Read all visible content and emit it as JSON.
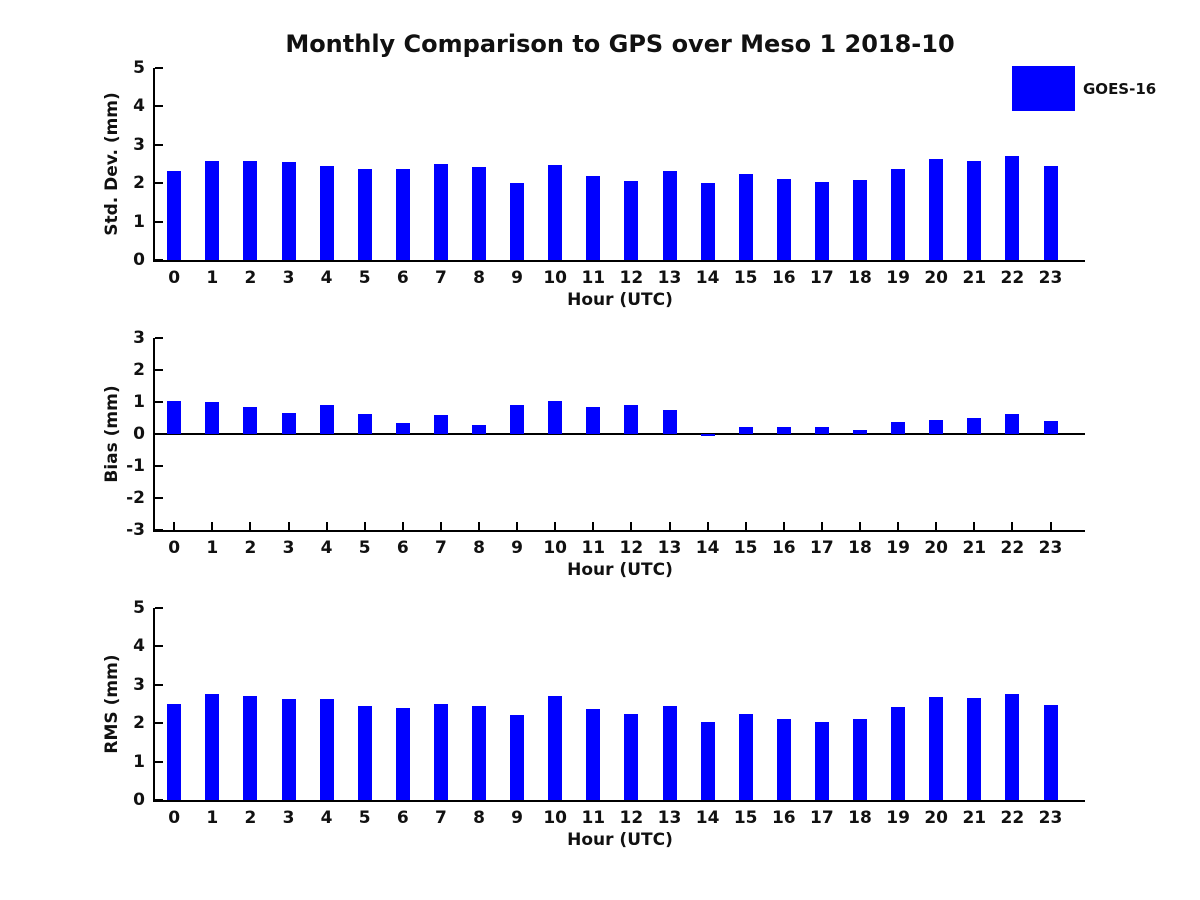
{
  "figure": {
    "title": "Monthly Comparison to GPS over Meso 1 2018-10",
    "background_color": "#ffffff"
  },
  "legend": {
    "label": "GOES-16",
    "swatch_color": "#0000ff",
    "position": "top-right"
  },
  "colors": {
    "bar": "#0000ff",
    "axis": "#000000",
    "text": "#111111"
  },
  "chart_data": [
    {
      "type": "bar",
      "title": "",
      "ylabel": "Std. Dev. (mm)",
      "xlabel": "Hour (UTC)",
      "ylim": [
        0,
        5
      ],
      "yticks": [
        0,
        1,
        2,
        3,
        4,
        5
      ],
      "grid": false,
      "legend_position": "top-right",
      "categories": [
        "0",
        "1",
        "2",
        "3",
        "4",
        "5",
        "6",
        "7",
        "8",
        "9",
        "10",
        "11",
        "12",
        "13",
        "14",
        "15",
        "16",
        "17",
        "18",
        "19",
        "20",
        "21",
        "22",
        "23"
      ],
      "series": [
        {
          "name": "GOES-16",
          "values": [
            2.32,
            2.58,
            2.58,
            2.55,
            2.46,
            2.37,
            2.37,
            2.49,
            2.42,
            2.0,
            2.48,
            2.2,
            2.06,
            2.32,
            2.0,
            2.23,
            2.1,
            2.03,
            2.08,
            2.36,
            2.62,
            2.59,
            2.7,
            2.45
          ]
        }
      ]
    },
    {
      "type": "bar",
      "title": "",
      "ylabel": "Bias (mm)",
      "xlabel": "Hour (UTC)",
      "ylim": [
        -3,
        3
      ],
      "yticks": [
        -3,
        -2,
        -1,
        0,
        1,
        2,
        3
      ],
      "grid": false,
      "legend_position": "none",
      "categories": [
        "0",
        "1",
        "2",
        "3",
        "4",
        "5",
        "6",
        "7",
        "8",
        "9",
        "10",
        "11",
        "12",
        "13",
        "14",
        "15",
        "16",
        "17",
        "18",
        "19",
        "20",
        "21",
        "22",
        "23"
      ],
      "series": [
        {
          "name": "GOES-16",
          "values": [
            1.03,
            1.0,
            0.85,
            0.66,
            0.91,
            0.61,
            0.35,
            0.58,
            0.29,
            0.91,
            1.03,
            0.85,
            0.91,
            0.75,
            -0.05,
            0.23,
            0.22,
            0.22,
            0.14,
            0.38,
            0.44,
            0.5,
            0.63,
            0.41
          ]
        }
      ]
    },
    {
      "type": "bar",
      "title": "",
      "ylabel": "RMS (mm)",
      "xlabel": "Hour (UTC)",
      "ylim": [
        0,
        5
      ],
      "yticks": [
        0,
        1,
        2,
        3,
        4,
        5
      ],
      "grid": false,
      "legend_position": "none",
      "categories": [
        "0",
        "1",
        "2",
        "3",
        "4",
        "5",
        "6",
        "7",
        "8",
        "9",
        "10",
        "11",
        "12",
        "13",
        "14",
        "15",
        "16",
        "17",
        "18",
        "19",
        "20",
        "21",
        "22",
        "23"
      ],
      "series": [
        {
          "name": "GOES-16",
          "values": [
            2.51,
            2.77,
            2.7,
            2.63,
            2.63,
            2.45,
            2.39,
            2.51,
            2.45,
            2.22,
            2.71,
            2.36,
            2.25,
            2.45,
            2.03,
            2.23,
            2.12,
            2.04,
            2.1,
            2.41,
            2.69,
            2.65,
            2.75,
            2.47
          ]
        }
      ]
    }
  ]
}
